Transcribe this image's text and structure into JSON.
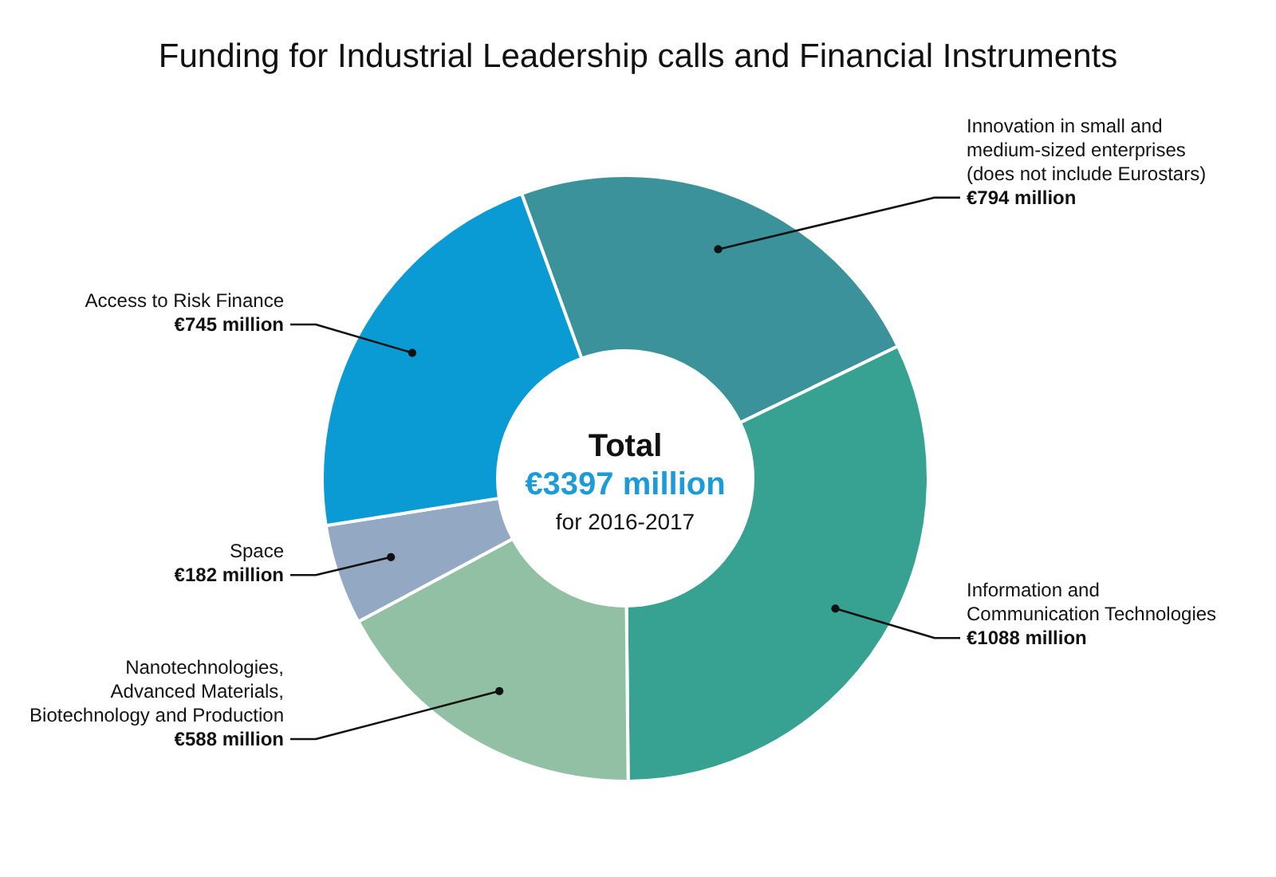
{
  "chart_data": {
    "type": "donut",
    "title": "Funding for Industrial Leadership calls and Financial Instruments",
    "categories": [
      "Innovation in small and medium-sized enterprises (does not include Eurostars)",
      "Information and Communication Technologies",
      "Nanotechnologies, Advanced Materials, Biotechnology and Production",
      "Space",
      "Access to Risk Finance"
    ],
    "values": [
      794,
      1088,
      588,
      182,
      745
    ],
    "colors": [
      "#3c929b",
      "#37a291",
      "#92c0a5",
      "#93a9c3",
      "#0a9ad4"
    ],
    "value_labels": [
      "€794 million",
      "€1088 million",
      "€588 million",
      "€182 million",
      "€745 million"
    ],
    "annotations": [
      "Total",
      "€3397 million",
      "for 2016-2017"
    ],
    "legend": false
  }
}
